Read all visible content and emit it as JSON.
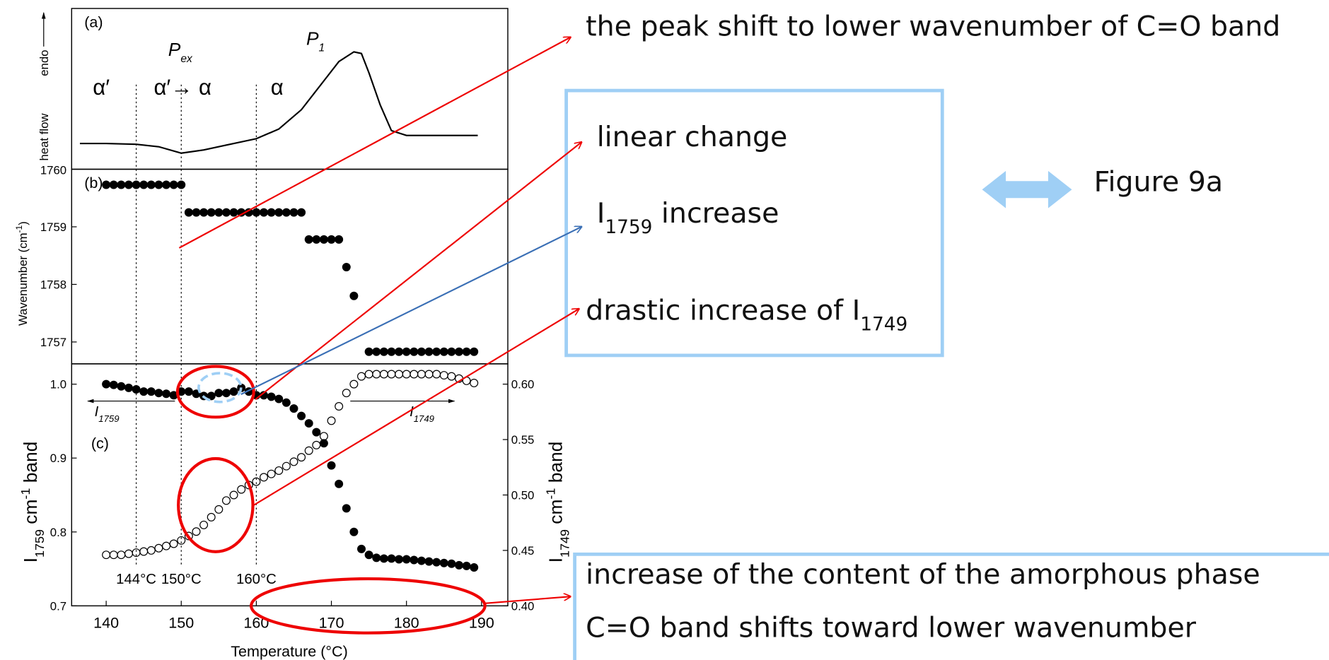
{
  "chart_data": [
    {
      "type": "line",
      "panel": "(a)",
      "xlim": [
        135.4,
        193.5
      ],
      "ylim": [
        0,
        1
      ],
      "y_label": "heat flow",
      "y_label_dir": "endo",
      "ylim_edge_label": "1760",
      "x": [
        136.5,
        140,
        144,
        147,
        150,
        153,
        156,
        160,
        163,
        166,
        169,
        171,
        173,
        174,
        175,
        176.5,
        178,
        180,
        189.5
      ],
      "series": [
        {
          "color": "#000000",
          "values": [
            0.16,
            0.16,
            0.155,
            0.14,
            0.1,
            0.12,
            0.15,
            0.19,
            0.25,
            0.37,
            0.55,
            0.67,
            0.73,
            0.72,
            0.6,
            0.4,
            0.24,
            0.21,
            0.21
          ]
        }
      ],
      "phase_labels": [
        "α′",
        "α′→ α",
        "α"
      ],
      "peaks": [
        [
          "P",
          "ex"
        ],
        [
          "P",
          "1"
        ]
      ]
    },
    {
      "type": "scatter",
      "panel": "(b)",
      "xlim": [
        135.4,
        193.5
      ],
      "ylim": [
        1756.62,
        1760
      ],
      "yticks": [
        1757,
        1758,
        1759
      ],
      "y_label": [
        "Wavenumber (cm",
        "-1",
        ")"
      ],
      "x": [
        140,
        141,
        142,
        143,
        144,
        145,
        146,
        147,
        148,
        149,
        150,
        151,
        152,
        153,
        154,
        155,
        156,
        157,
        158,
        159,
        160,
        161,
        162,
        163,
        164,
        165,
        166,
        167,
        168,
        169,
        170,
        171,
        172,
        173,
        175,
        176,
        177,
        178,
        179,
        180,
        181,
        182,
        183,
        184,
        185,
        186,
        187,
        188,
        189
      ],
      "series": [
        {
          "color": "#000000",
          "marker": "filled",
          "values": [
            1759.73,
            1759.73,
            1759.73,
            1759.73,
            1759.73,
            1759.73,
            1759.73,
            1759.73,
            1759.73,
            1759.73,
            1759.73,
            1759.25,
            1759.25,
            1759.25,
            1759.25,
            1759.25,
            1759.25,
            1759.25,
            1759.25,
            1759.25,
            1759.25,
            1759.25,
            1759.25,
            1759.25,
            1759.25,
            1759.25,
            1759.25,
            1758.78,
            1758.78,
            1758.78,
            1758.78,
            1758.78,
            1758.3,
            1757.8,
            1756.83,
            1756.83,
            1756.83,
            1756.83,
            1756.83,
            1756.83,
            1756.83,
            1756.83,
            1756.83,
            1756.83,
            1756.83,
            1756.83,
            1756.83,
            1756.83,
            1756.83
          ]
        }
      ]
    },
    {
      "type": "scatter",
      "panel": "(c)",
      "xlim": [
        135.4,
        193.5
      ],
      "ylim": [
        0.7,
        1.0275
      ],
      "y2lim": [
        0.4,
        0.6183
      ],
      "xticks": [
        140,
        150,
        160,
        170,
        180,
        190
      ],
      "yticks": [
        {
          "value": 0.7,
          "label": "0.7"
        },
        {
          "value": 0.8,
          "label": "0.8"
        },
        {
          "value": 0.9,
          "label": "0.9"
        },
        {
          "value": 1.0,
          "label": "1.0"
        }
      ],
      "y2ticks": [
        {
          "value": 0.4,
          "label": "0.40"
        },
        {
          "value": 0.45,
          "label": "0.45"
        },
        {
          "value": 0.5,
          "label": "0.50"
        },
        {
          "value": 0.55,
          "label": "0.55"
        },
        {
          "value": 0.6,
          "label": "0.60"
        }
      ],
      "x_label": "Temperature (°C)",
      "y_label": [
        "I",
        "1759",
        " cm",
        "-1",
        " band"
      ],
      "y2_label": [
        "I",
        "1749",
        " cm",
        "-1",
        " band"
      ],
      "vlines": [
        {
          "value": 144,
          "label": "144°C"
        },
        {
          "value": 150,
          "label": "150°C"
        },
        {
          "value": 160,
          "label": "160°C"
        }
      ],
      "x": [
        140,
        141,
        142,
        143,
        144,
        145,
        146,
        147,
        148,
        149,
        150,
        151,
        152,
        153,
        154,
        155,
        156,
        157,
        158,
        159,
        160,
        161,
        162,
        163,
        164,
        165,
        166,
        167,
        168,
        169,
        170,
        171,
        172,
        173,
        174,
        175,
        176,
        177,
        178,
        179,
        180,
        181,
        182,
        183,
        184,
        185,
        186,
        187,
        188,
        189
      ],
      "series": [
        {
          "name_parts": [
            "I",
            "1759"
          ],
          "color": "#000000",
          "marker": "filled",
          "values": [
            1.0,
            0.999,
            0.997,
            0.995,
            0.993,
            0.99,
            0.99,
            0.988,
            0.987,
            0.985,
            0.99,
            0.99,
            0.987,
            0.984,
            0.984,
            0.988,
            0.988,
            0.99,
            0.995,
            0.99,
            0.985,
            0.985,
            0.983,
            0.98,
            0.975,
            0.967,
            0.957,
            0.947,
            0.935,
            0.92,
            0.89,
            0.865,
            0.832,
            0.8,
            0.777,
            0.769,
            0.765,
            0.764,
            0.764,
            0.763,
            0.763,
            0.762,
            0.761,
            0.76,
            0.759,
            0.758,
            0.757,
            0.755,
            0.754,
            0.752
          ]
        },
        {
          "name_parts": [
            "I",
            "1749"
          ],
          "color": "#000000",
          "marker": "open",
          "axis": "y2",
          "values": [
            0.446,
            0.446,
            0.446,
            0.447,
            0.448,
            0.449,
            0.45,
            0.452,
            0.454,
            0.456,
            0.459,
            0.463,
            0.467,
            0.473,
            0.48,
            0.487,
            0.495,
            0.5,
            0.505,
            0.509,
            0.512,
            0.516,
            0.519,
            0.522,
            0.526,
            0.53,
            0.534,
            0.54,
            0.545,
            0.553,
            0.567,
            0.58,
            0.592,
            0.6,
            0.607,
            0.609,
            0.609,
            0.609,
            0.609,
            0.609,
            0.609,
            0.609,
            0.609,
            0.609,
            0.609,
            0.608,
            0.607,
            0.605,
            0.603,
            0.601
          ]
        }
      ]
    }
  ],
  "annotations": {
    "peak_shift": "the peak shift to lower wavenumber of C=O band",
    "linear": "linear change",
    "i1759_increase": [
      "I",
      "1759",
      " increase"
    ],
    "drastic": [
      "drastic increase of I",
      "1749"
    ],
    "figure_ref": "Figure 9a",
    "amorphous": "increase of the content of the amorphous phase",
    "co_shift": "C=O band shifts toward lower wavenumber"
  }
}
